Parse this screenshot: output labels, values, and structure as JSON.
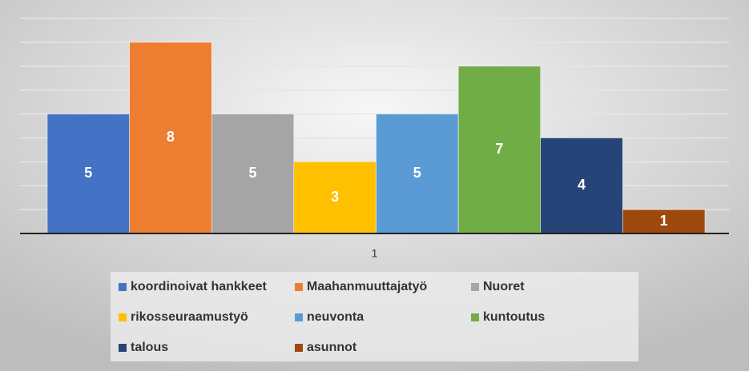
{
  "chart_data": {
    "type": "bar",
    "categories": [
      "1"
    ],
    "series": [
      {
        "name": "koordinoivat hankkeet",
        "color": "#4472c4",
        "values": [
          5
        ]
      },
      {
        "name": "Maahanmuuttajatyö",
        "color": "#ed7d31",
        "values": [
          8
        ]
      },
      {
        "name": "Nuoret",
        "color": "#a5a5a5",
        "values": [
          5
        ]
      },
      {
        "name": "rikosseuraamustyö",
        "color": "#ffc000",
        "values": [
          3
        ]
      },
      {
        "name": "neuvonta",
        "color": "#5b9bd5",
        "values": [
          5
        ]
      },
      {
        "name": "kuntoutus",
        "color": "#70ad47",
        "values": [
          7
        ]
      },
      {
        "name": "talous",
        "color": "#264478",
        "values": [
          4
        ]
      },
      {
        "name": "asunnot",
        "color": "#9e480e",
        "values": [
          1
        ]
      }
    ],
    "ylim": [
      0,
      9
    ],
    "yticks": [
      0,
      1,
      2,
      3,
      4,
      5,
      6,
      7,
      8,
      9
    ],
    "grid": true
  }
}
